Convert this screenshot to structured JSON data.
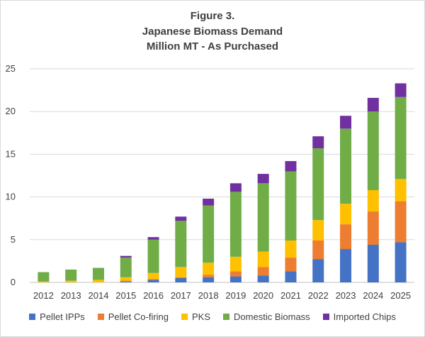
{
  "chart_data": {
    "type": "bar",
    "stacked": true,
    "title_lines": [
      "Figure 3.",
      "Japanese Biomass Demand",
      "Million MT - As Purchased"
    ],
    "xlabel": "",
    "ylabel": "",
    "ylim": [
      0,
      25
    ],
    "y_ticks": [
      "0",
      "5",
      "10",
      "15",
      "20",
      "25"
    ],
    "grid": true,
    "legend_position": "bottom",
    "categories": [
      "2012",
      "2013",
      "2014",
      "2015",
      "2016",
      "2017",
      "2018",
      "2019",
      "2020",
      "2021",
      "2022",
      "2023",
      "2024",
      "2025"
    ],
    "series": [
      {
        "name": "Pellet IPPs",
        "color": "#4472c4",
        "values": [
          0,
          0,
          0,
          0.1,
          0.3,
          0.5,
          0.6,
          0.7,
          0.8,
          1.3,
          2.7,
          3.9,
          4.4,
          4.7
        ]
      },
      {
        "name": "Pellet Co-firing",
        "color": "#ed7d31",
        "values": [
          0,
          0,
          0,
          0.1,
          0.1,
          0.1,
          0.3,
          0.6,
          1.0,
          1.6,
          2.2,
          2.9,
          3.9,
          4.8
        ]
      },
      {
        "name": "PKS",
        "color": "#ffc000",
        "values": [
          0.1,
          0.2,
          0.3,
          0.4,
          0.7,
          1.2,
          1.4,
          1.7,
          1.8,
          2.0,
          2.4,
          2.4,
          2.5,
          2.6
        ]
      },
      {
        "name": "Domestic Biomass",
        "color": "#70ad47",
        "values": [
          1.1,
          1.3,
          1.4,
          2.3,
          3.9,
          5.4,
          6.7,
          7.6,
          8.0,
          8.1,
          8.4,
          8.8,
          9.2,
          9.6
        ]
      },
      {
        "name": "Imported Chips",
        "color": "#7030a0",
        "values": [
          0,
          0,
          0,
          0.2,
          0.3,
          0.5,
          0.8,
          1.0,
          1.1,
          1.2,
          1.4,
          1.5,
          1.6,
          1.6
        ]
      }
    ]
  }
}
